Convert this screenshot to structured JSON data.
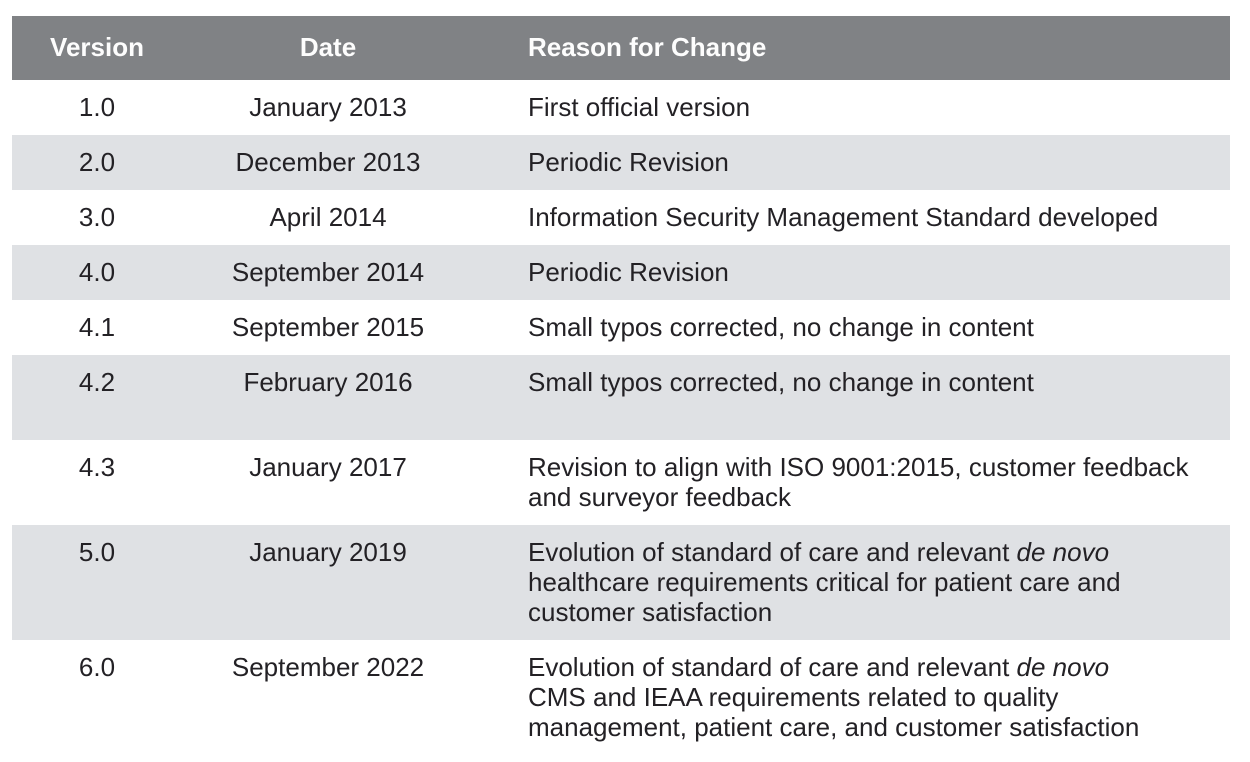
{
  "colors": {
    "header_bg": "#808285",
    "header_text": "#fdfdfd",
    "shade_bg": "#dfe1e4",
    "text": "#232125",
    "page_bg": "#ffffff"
  },
  "table": {
    "columns": [
      {
        "key": "version",
        "label": "Version"
      },
      {
        "key": "date",
        "label": "Date"
      },
      {
        "key": "reason",
        "label": "Reason for Change"
      }
    ],
    "rows": [
      {
        "version": "1.0",
        "date": "January 2013",
        "shaded": false,
        "reason": [
          {
            "text": "First official version",
            "italic": false
          }
        ]
      },
      {
        "version": "2.0",
        "date": "December 2013",
        "shaded": true,
        "reason": [
          {
            "text": "Periodic Revision",
            "italic": false
          }
        ]
      },
      {
        "version": "3.0",
        "date": "April 2014",
        "shaded": false,
        "reason": [
          {
            "text": "Information Security Management Standard developed",
            "italic": false
          }
        ]
      },
      {
        "version": "4.0",
        "date": "September 2014",
        "shaded": true,
        "reason": [
          {
            "text": "Periodic Revision",
            "italic": false
          }
        ]
      },
      {
        "version": "4.1",
        "date": "September 2015",
        "shaded": false,
        "reason": [
          {
            "text": "Small typos corrected, no change in content",
            "italic": false
          }
        ]
      },
      {
        "version": "4.2",
        "date": "February 2016",
        "shaded": true,
        "blank_line_after": true,
        "reason": [
          {
            "text": "Small typos corrected, no change in content",
            "italic": false
          }
        ]
      },
      {
        "version": "4.3",
        "date": "January 2017",
        "shaded": false,
        "reason": [
          {
            "text": "Revision to align with ISO 9001:2015, customer feedback\nand surveyor feedback",
            "italic": false
          }
        ]
      },
      {
        "version": "5.0",
        "date": "January 2019",
        "shaded": true,
        "reason": [
          {
            "text": "Evolution of standard of care and relevant ",
            "italic": false
          },
          {
            "text": "de novo",
            "italic": true
          },
          {
            "text": "\nhealthcare requirements critical for patient care and\ncustomer satisfaction",
            "italic": false
          }
        ]
      },
      {
        "version": "6.0",
        "date": "September 2022",
        "shaded": false,
        "reason": [
          {
            "text": "Evolution of standard of care and relevant ",
            "italic": false
          },
          {
            "text": "de novo",
            "italic": true
          },
          {
            "text": "\nCMS and IEAA requirements related to quality\nmanagement, patient care, and customer satisfaction",
            "italic": false
          }
        ]
      }
    ]
  }
}
